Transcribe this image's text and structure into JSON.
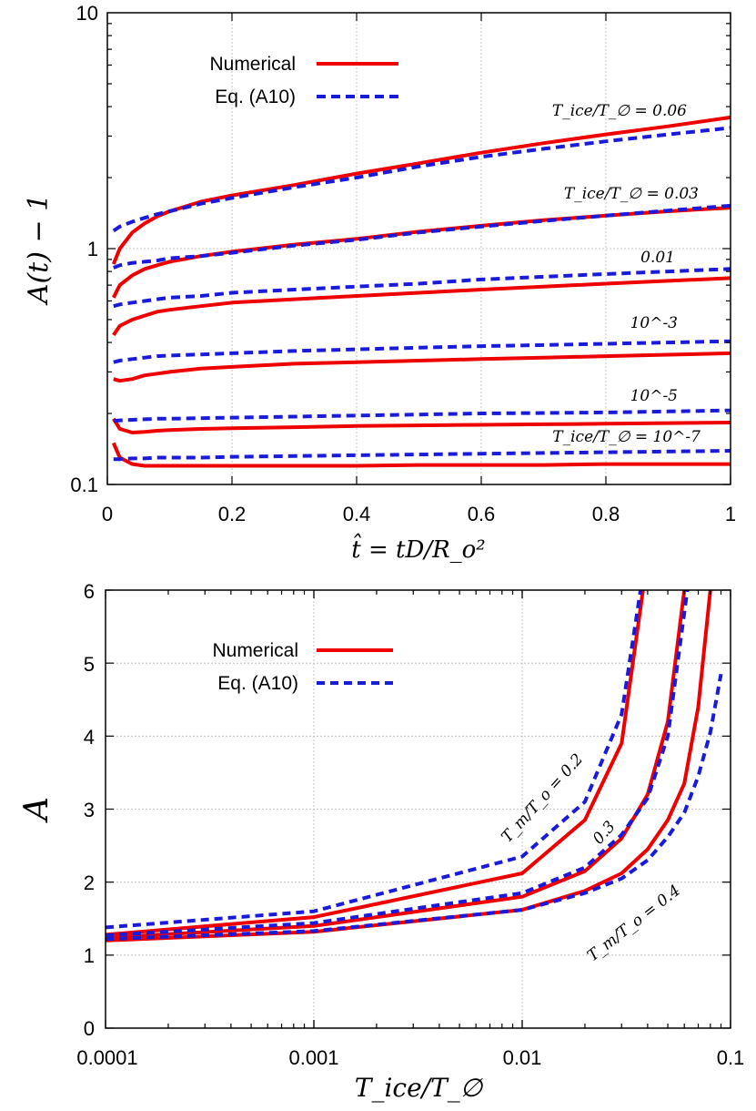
{
  "colors": {
    "numerical": "#ee0000",
    "equation": "#1a1adb"
  },
  "chart_data": [
    {
      "type": "line",
      "yscale": "log",
      "xlabel": "t̂ = tD/R_o²",
      "ylabel": "A(t) − 1",
      "xlim": [
        0,
        1
      ],
      "ylim": [
        0.1,
        10
      ],
      "xticks": [
        "0",
        "0.2",
        "0.4",
        "0.6",
        "0.8",
        "1"
      ],
      "yticks": [
        "0.1",
        "1",
        "10"
      ],
      "legend": {
        "position": "top-left",
        "entries": [
          "Numerical",
          "Eq. (A10)"
        ]
      },
      "annotations": [
        "T_ice/T_∅ = 0.06",
        "T_ice/T_∅ = 0.03",
        "0.01",
        "10^-3",
        "10^-5",
        "T_ice/T_∅ = 10^-7"
      ],
      "x": [
        0.01,
        0.02,
        0.04,
        0.06,
        0.08,
        0.1,
        0.15,
        0.2,
        0.3,
        0.4,
        0.5,
        0.6,
        0.7,
        0.8,
        0.9,
        1.0
      ],
      "series": [
        {
          "name": "Numerical T_ice/T_∅ = 0.06",
          "kind": "numerical",
          "values": [
            0.86,
            1.0,
            1.17,
            1.28,
            1.37,
            1.44,
            1.58,
            1.68,
            1.86,
            2.08,
            2.3,
            2.55,
            2.8,
            3.05,
            3.3,
            3.6
          ]
        },
        {
          "name": "Eq. (A10) T_ice/T_∅ = 0.06",
          "kind": "equation",
          "values": [
            1.19,
            1.24,
            1.3,
            1.35,
            1.4,
            1.44,
            1.55,
            1.64,
            1.82,
            2.0,
            2.23,
            2.45,
            2.65,
            2.85,
            3.05,
            3.25
          ]
        },
        {
          "name": "Numerical T_ice/T_∅ = 0.03",
          "kind": "numerical",
          "values": [
            0.62,
            0.7,
            0.77,
            0.82,
            0.85,
            0.88,
            0.93,
            0.97,
            1.04,
            1.1,
            1.18,
            1.25,
            1.32,
            1.38,
            1.44,
            1.49
          ]
        },
        {
          "name": "Eq. (A10) T_ice/T_∅ = 0.03",
          "kind": "equation",
          "values": [
            0.83,
            0.85,
            0.87,
            0.88,
            0.89,
            0.91,
            0.93,
            0.96,
            1.03,
            1.09,
            1.17,
            1.24,
            1.31,
            1.38,
            1.45,
            1.52
          ]
        },
        {
          "name": "Numerical T_ice/T_∅ = 0.01",
          "kind": "numerical",
          "values": [
            0.43,
            0.47,
            0.5,
            0.52,
            0.54,
            0.55,
            0.57,
            0.59,
            0.61,
            0.63,
            0.65,
            0.67,
            0.69,
            0.71,
            0.73,
            0.75
          ]
        },
        {
          "name": "Eq. (A10) T_ice/T_∅ = 0.01",
          "kind": "equation",
          "values": [
            0.57,
            0.58,
            0.59,
            0.6,
            0.61,
            0.62,
            0.63,
            0.65,
            0.67,
            0.69,
            0.71,
            0.74,
            0.76,
            0.78,
            0.8,
            0.82
          ]
        },
        {
          "name": "Numerical T_ice/T_∅ = 10^-3",
          "kind": "numerical",
          "values": [
            0.28,
            0.275,
            0.28,
            0.29,
            0.295,
            0.3,
            0.31,
            0.315,
            0.325,
            0.33,
            0.335,
            0.34,
            0.345,
            0.35,
            0.355,
            0.36
          ]
        },
        {
          "name": "Eq. (A10) T_ice/T_∅ = 10^-3",
          "kind": "equation",
          "values": [
            0.33,
            0.335,
            0.34,
            0.345,
            0.35,
            0.352,
            0.356,
            0.36,
            0.368,
            0.374,
            0.38,
            0.386,
            0.39,
            0.395,
            0.4,
            0.405
          ]
        },
        {
          "name": "Numerical T_ice/T_∅ = 10^-5",
          "kind": "numerical",
          "values": [
            0.19,
            0.172,
            0.166,
            0.167,
            0.169,
            0.17,
            0.172,
            0.173,
            0.175,
            0.177,
            0.178,
            0.179,
            0.18,
            0.181,
            0.182,
            0.183
          ]
        },
        {
          "name": "Eq. (A10) T_ice/T_∅ = 10^-5",
          "kind": "equation",
          "values": [
            0.186,
            0.187,
            0.188,
            0.189,
            0.19,
            0.19,
            0.191,
            0.192,
            0.194,
            0.196,
            0.198,
            0.2,
            0.201,
            0.202,
            0.204,
            0.206
          ]
        },
        {
          "name": "Numerical T_ice/T_∅ = 10^-7",
          "kind": "numerical",
          "values": [
            0.15,
            0.13,
            0.122,
            0.12,
            0.12,
            0.12,
            0.12,
            0.12,
            0.12,
            0.12,
            0.121,
            0.121,
            0.121,
            0.122,
            0.122,
            0.122
          ]
        },
        {
          "name": "Eq. (A10) T_ice/T_∅ = 10^-7",
          "kind": "equation",
          "values": [
            0.128,
            0.128,
            0.129,
            0.129,
            0.13,
            0.13,
            0.13,
            0.131,
            0.132,
            0.133,
            0.134,
            0.135,
            0.136,
            0.137,
            0.138,
            0.139
          ]
        }
      ]
    },
    {
      "type": "line",
      "xscale": "log",
      "xlabel": "T_ice/T_∅",
      "ylabel": "A",
      "xlim": [
        0.0001,
        0.1
      ],
      "ylim": [
        0,
        6
      ],
      "xticks": [
        "0.0001",
        "0.001",
        "0.01",
        "0.1"
      ],
      "yticks": [
        "0",
        "1",
        "2",
        "3",
        "4",
        "5",
        "6"
      ],
      "legend": {
        "position": "top-left",
        "entries": [
          "Numerical",
          "Eq. (A10)"
        ]
      },
      "annotations": [
        "T_m/T_o = 0.2",
        "0.3",
        "T_m/T_o = 0.4"
      ],
      "series": [
        {
          "name": "Numerical T_m/T_o = 0.2",
          "kind": "numerical",
          "x": [
            0.0001,
            0.001,
            0.01,
            0.02,
            0.03,
            0.038
          ],
          "values": [
            1.28,
            1.52,
            2.12,
            2.85,
            3.9,
            6.0
          ]
        },
        {
          "name": "Eq. (A10) T_m/T_o = 0.2",
          "kind": "equation",
          "x": [
            0.0001,
            0.001,
            0.01,
            0.02,
            0.03,
            0.037
          ],
          "values": [
            1.38,
            1.6,
            2.35,
            3.1,
            4.3,
            6.0
          ]
        },
        {
          "name": "Numerical T_m/T_o = 0.3",
          "kind": "numerical",
          "x": [
            0.0001,
            0.001,
            0.01,
            0.02,
            0.03,
            0.04,
            0.05,
            0.06
          ],
          "values": [
            1.24,
            1.4,
            1.8,
            2.15,
            2.6,
            3.2,
            4.2,
            6.0
          ]
        },
        {
          "name": "Eq. (A10) T_m/T_o = 0.3",
          "kind": "equation",
          "x": [
            0.0001,
            0.001,
            0.01,
            0.02,
            0.03,
            0.04,
            0.05,
            0.062
          ],
          "values": [
            1.27,
            1.44,
            1.85,
            2.2,
            2.65,
            3.15,
            4.0,
            6.0
          ]
        },
        {
          "name": "Numerical T_m/T_o = 0.4",
          "kind": "numerical",
          "x": [
            0.0001,
            0.001,
            0.01,
            0.02,
            0.03,
            0.04,
            0.05,
            0.06,
            0.07,
            0.08
          ],
          "values": [
            1.2,
            1.32,
            1.62,
            1.88,
            2.12,
            2.45,
            2.85,
            3.35,
            4.4,
            6.0
          ]
        },
        {
          "name": "Eq. (A10) T_m/T_o = 0.4",
          "kind": "equation",
          "x": [
            0.0001,
            0.001,
            0.01,
            0.02,
            0.03,
            0.04,
            0.05,
            0.06,
            0.07,
            0.08,
            0.09
          ],
          "values": [
            1.22,
            1.33,
            1.62,
            1.85,
            2.05,
            2.3,
            2.62,
            2.95,
            3.45,
            4.05,
            4.85
          ]
        }
      ]
    }
  ]
}
